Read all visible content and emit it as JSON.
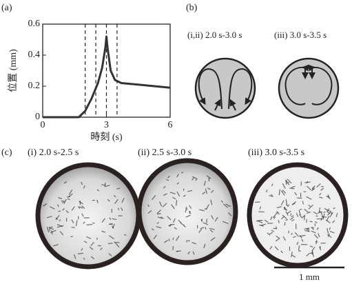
{
  "chart_data": {
    "type": "line",
    "panel_label": "(a)",
    "x_label": "時刻 (s)",
    "y_label": "位置 (mm)",
    "x": [
      0,
      1.7,
      2.0,
      2.3,
      2.6,
      2.8,
      2.95,
      3.0,
      3.05,
      3.2,
      3.4,
      3.7,
      4.5,
      6
    ],
    "values": [
      0,
      0,
      0.04,
      0.12,
      0.22,
      0.32,
      0.45,
      0.52,
      0.45,
      0.3,
      0.24,
      0.22,
      0.21,
      0.19
    ],
    "color": "#333333",
    "xlim": [
      0,
      6
    ],
    "xticks": [
      0,
      3,
      6
    ],
    "ylim": [
      0,
      0.6
    ],
    "yticks": [
      0,
      0.2,
      0.4,
      0.6
    ],
    "vlines": [
      2.0,
      2.5,
      3.0,
      3.5
    ]
  },
  "panel_b": {
    "label": "(b)",
    "diagrams": [
      "(i,ii) 2.0 s-3.0 s",
      "(iii) 3.0 s-3.5 s"
    ]
  },
  "panel_c": {
    "label": "(c)",
    "images": [
      "(i) 2.0 s-2.5 s",
      "(ii) 2.5 s-3.0 s",
      "(iii) 3.0 s-3.5 s"
    ],
    "scale_bar": "1 mm"
  }
}
